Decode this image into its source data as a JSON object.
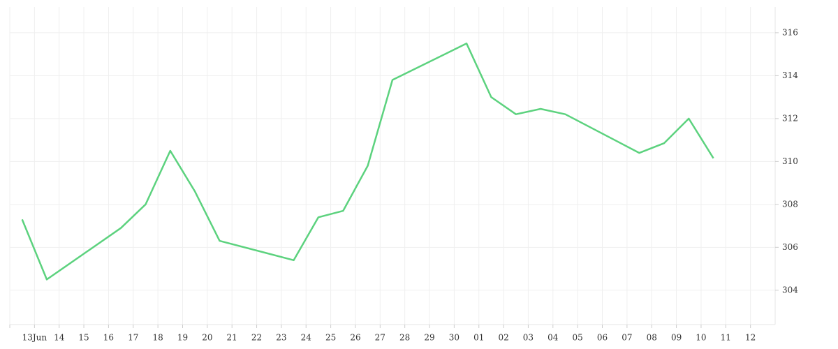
{
  "chart_data": {
    "type": "line",
    "categories": [
      null,
      "13Jun",
      "14",
      "15",
      "16",
      "17",
      "18",
      "19",
      "20",
      "21",
      "22",
      "23",
      "24",
      "25",
      "26",
      "27",
      "28",
      "29",
      "30",
      "01",
      "02",
      "03",
      "04",
      "05",
      "06",
      "07",
      "08",
      "09",
      "10",
      "11",
      "12"
    ],
    "values": [
      307.3,
      304.5,
      null,
      null,
      306.9,
      308.0,
      310.5,
      308.6,
      306.3,
      null,
      null,
      305.4,
      307.4,
      307.7,
      309.8,
      313.8,
      null,
      null,
      315.5,
      313.0,
      312.2,
      312.45,
      312.2,
      null,
      null,
      310.4,
      310.85,
      312.0,
      310.15,
      null,
      null
    ],
    "connect_gaps": true,
    "color": "#5cd27e",
    "ylim": [
      302.4,
      317.2
    ],
    "yticks": [
      304,
      306,
      308,
      310,
      312,
      314,
      316
    ],
    "grid": true
  }
}
